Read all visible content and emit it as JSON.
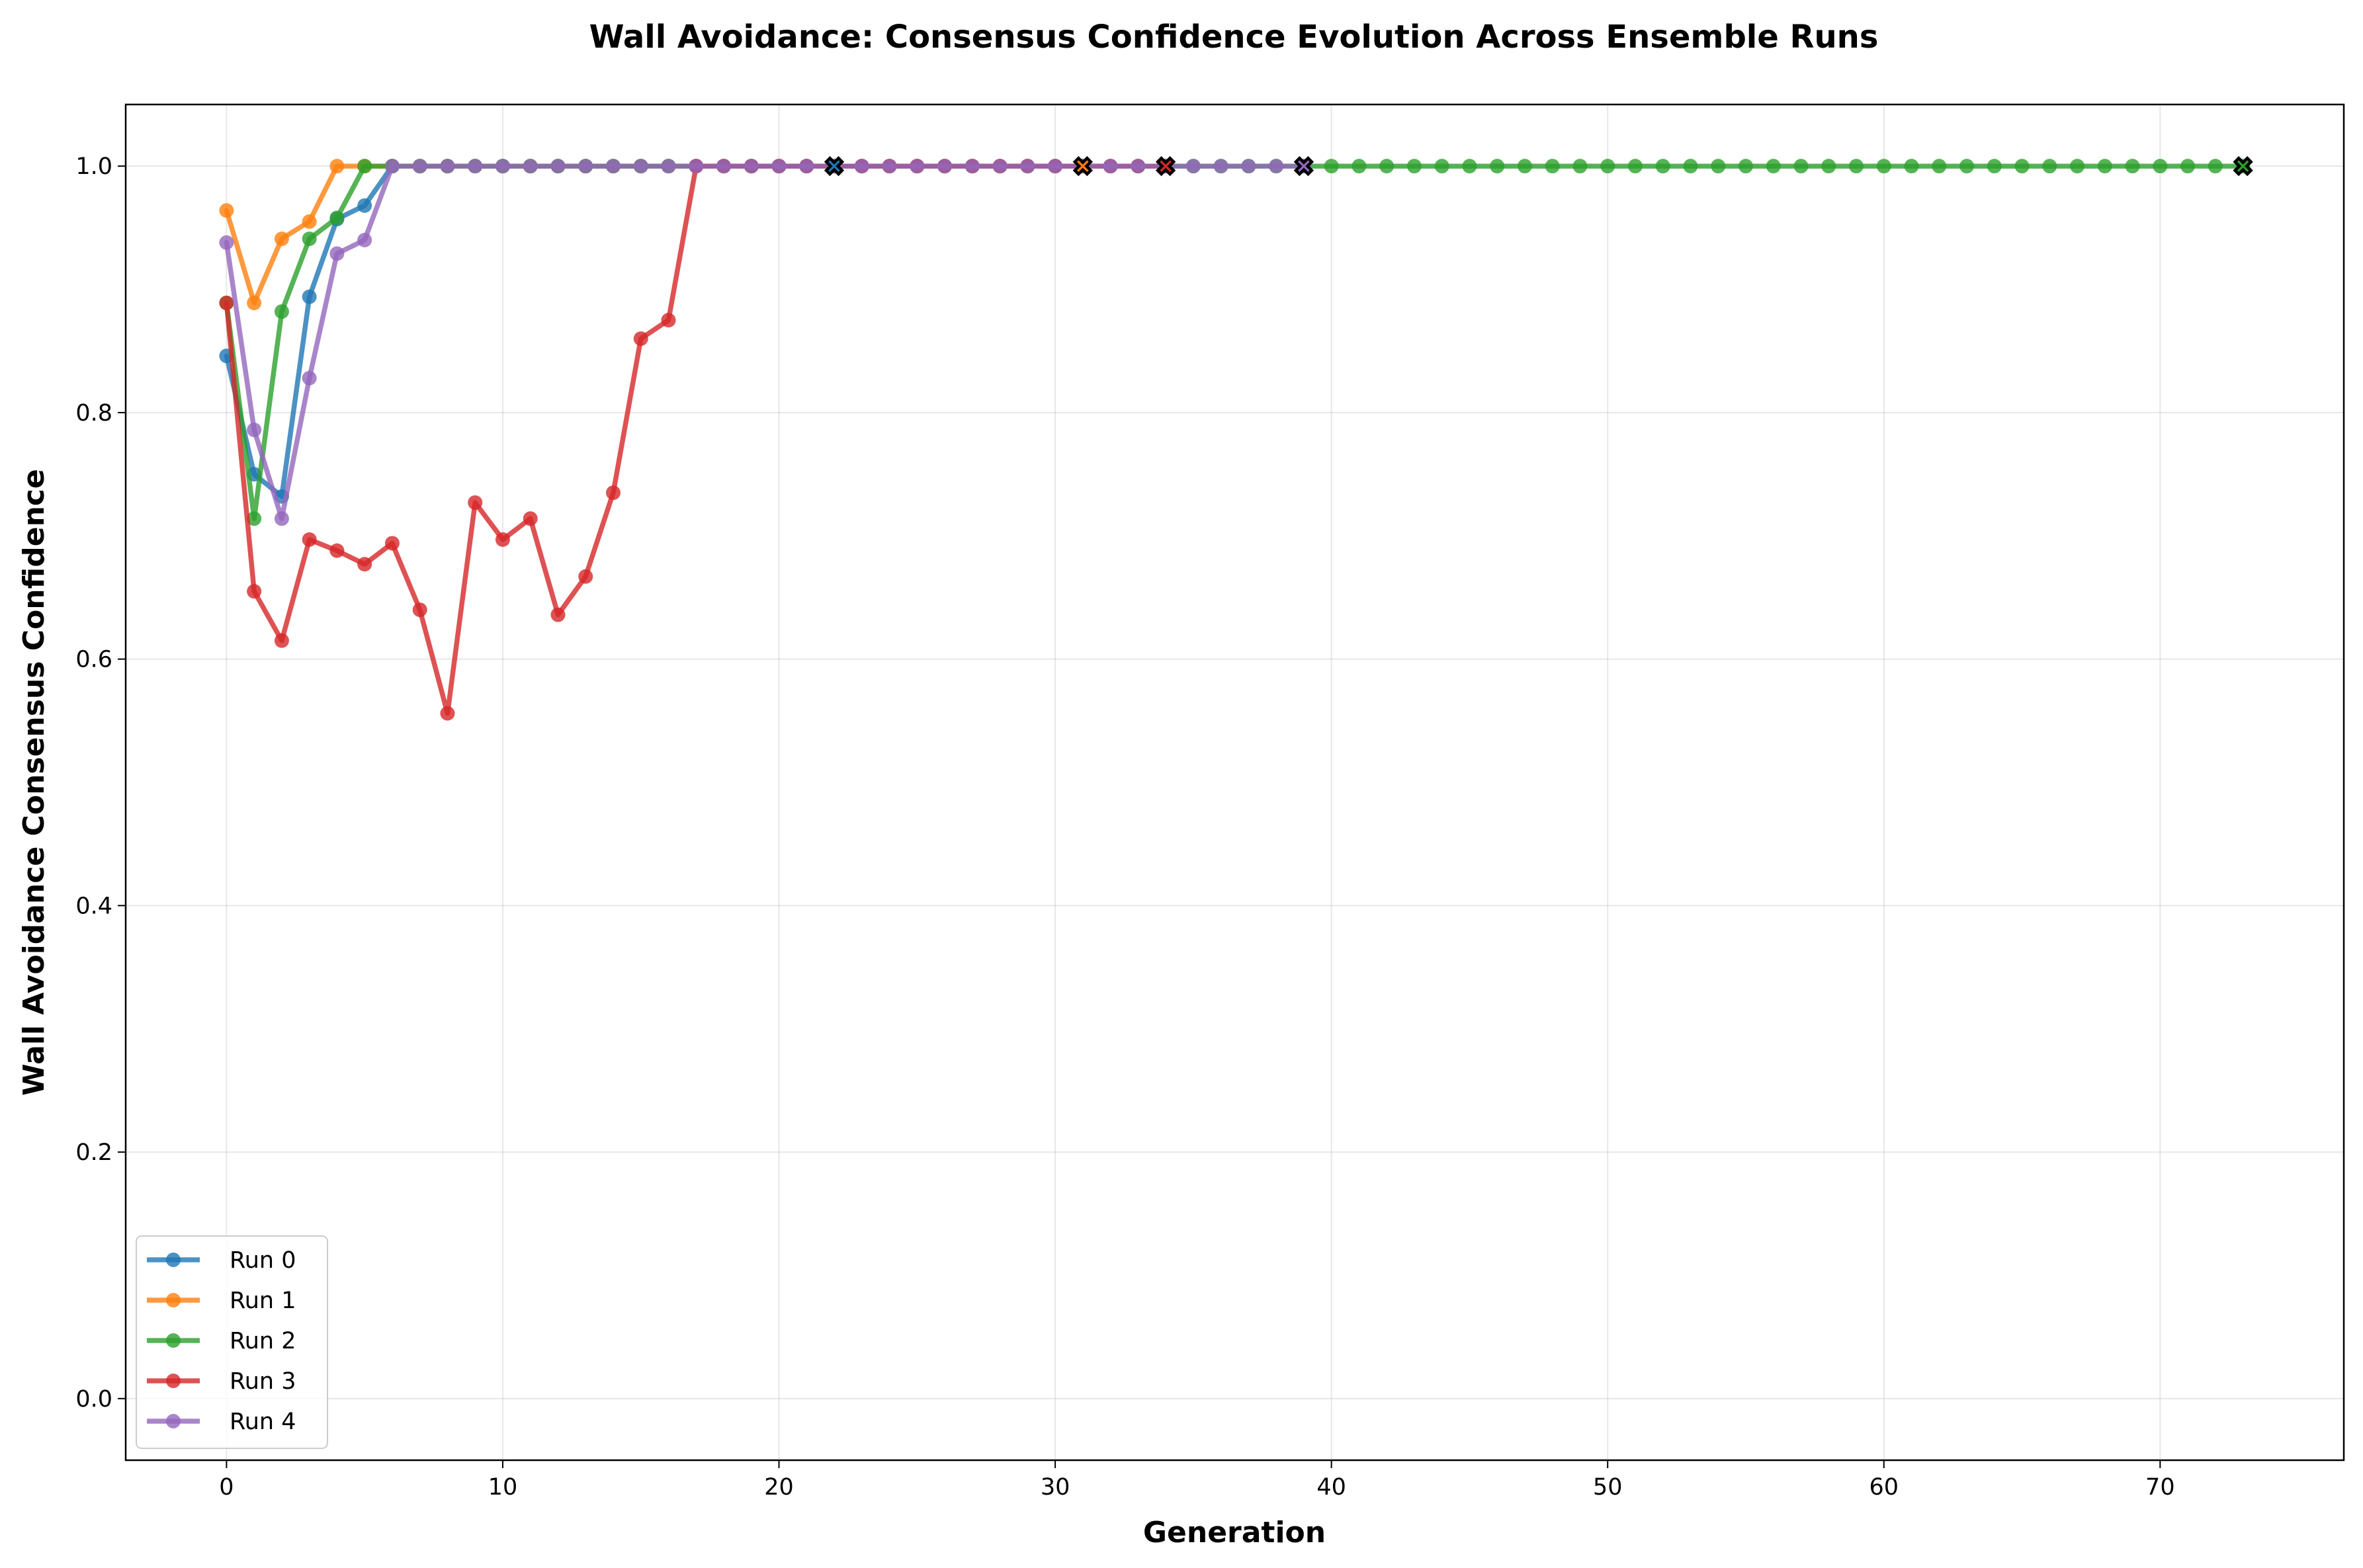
{
  "chart_data": {
    "type": "line",
    "title": "Wall Avoidance: Consensus Confidence Evolution Across Ensemble Runs",
    "xlabel": "Generation",
    "ylabel": "Wall Avoidance Consensus Confidence",
    "xlim": [
      -3.65,
      76.65
    ],
    "ylim": [
      -0.05,
      1.05
    ],
    "xticks": [
      0,
      10,
      20,
      30,
      40,
      50,
      60,
      70
    ],
    "yticks": [
      0.0,
      0.2,
      0.4,
      0.6,
      0.8,
      1.0
    ],
    "xtick_labels": [
      "0",
      "10",
      "20",
      "30",
      "40",
      "50",
      "60",
      "70"
    ],
    "ytick_labels": [
      "0.0",
      "0.2",
      "0.4",
      "0.6",
      "0.8",
      "1.0"
    ],
    "grid": true,
    "legend_position": "lower-left",
    "series": [
      {
        "name": "Run 0",
        "color": "#1f77b4",
        "values": [
          0.846,
          0.75,
          0.732,
          0.894,
          0.957,
          0.968,
          1.0,
          1.0,
          1.0,
          1.0,
          1.0,
          1.0,
          1.0,
          1.0,
          1.0,
          1.0,
          1.0,
          1.0,
          1.0,
          1.0,
          1.0,
          1.0,
          1.0
        ],
        "end_marker": {
          "x": 22,
          "y": 1.0
        }
      },
      {
        "name": "Run 1",
        "color": "#ff7f0e",
        "values": [
          0.964,
          0.889,
          0.941,
          0.955,
          1.0,
          1.0,
          1.0,
          1.0,
          1.0,
          1.0,
          1.0,
          1.0,
          1.0,
          1.0,
          1.0,
          1.0,
          1.0,
          1.0,
          1.0,
          1.0,
          1.0,
          1.0,
          1.0,
          1.0,
          1.0,
          1.0,
          1.0,
          1.0,
          1.0,
          1.0,
          1.0,
          1.0
        ],
        "end_marker": {
          "x": 31,
          "y": 1.0
        }
      },
      {
        "name": "Run 2",
        "color": "#2ca02c",
        "values": [
          0.889,
          0.714,
          0.882,
          0.941,
          0.958,
          1.0,
          1.0,
          1.0,
          1.0,
          1.0,
          1.0,
          1.0,
          1.0,
          1.0,
          1.0,
          1.0,
          1.0,
          1.0,
          1.0,
          1.0,
          1.0,
          1.0,
          1.0,
          1.0,
          1.0,
          1.0,
          1.0,
          1.0,
          1.0,
          1.0,
          1.0,
          1.0,
          1.0,
          1.0,
          1.0,
          1.0,
          1.0,
          1.0,
          1.0,
          1.0,
          1.0,
          1.0,
          1.0,
          1.0,
          1.0,
          1.0,
          1.0,
          1.0,
          1.0,
          1.0,
          1.0,
          1.0,
          1.0,
          1.0,
          1.0,
          1.0,
          1.0,
          1.0,
          1.0,
          1.0,
          1.0,
          1.0,
          1.0,
          1.0,
          1.0,
          1.0,
          1.0,
          1.0,
          1.0,
          1.0,
          1.0,
          1.0,
          1.0,
          1.0
        ],
        "end_marker": {
          "x": 73,
          "y": 1.0
        }
      },
      {
        "name": "Run 3",
        "color": "#d62728",
        "values": [
          0.889,
          0.655,
          0.615,
          0.697,
          0.688,
          0.677,
          0.694,
          0.64,
          0.556,
          0.727,
          0.697,
          0.714,
          0.636,
          0.667,
          0.735,
          0.86,
          0.875,
          1.0,
          1.0,
          1.0,
          1.0,
          1.0,
          1.0,
          1.0,
          1.0,
          1.0,
          1.0,
          1.0,
          1.0,
          1.0,
          1.0,
          1.0,
          1.0,
          1.0,
          1.0
        ],
        "end_marker": {
          "x": 34,
          "y": 1.0
        }
      },
      {
        "name": "Run 4",
        "color": "#9467bd",
        "values": [
          0.938,
          0.786,
          0.714,
          0.828,
          0.929,
          0.94,
          1.0,
          1.0,
          1.0,
          1.0,
          1.0,
          1.0,
          1.0,
          1.0,
          1.0,
          1.0,
          1.0,
          1.0,
          1.0,
          1.0,
          1.0,
          1.0,
          1.0,
          1.0,
          1.0,
          1.0,
          1.0,
          1.0,
          1.0,
          1.0,
          1.0,
          1.0,
          1.0,
          1.0,
          1.0,
          1.0,
          1.0,
          1.0,
          1.0,
          1.0
        ],
        "end_marker": {
          "x": 39,
          "y": 1.0
        }
      }
    ]
  }
}
